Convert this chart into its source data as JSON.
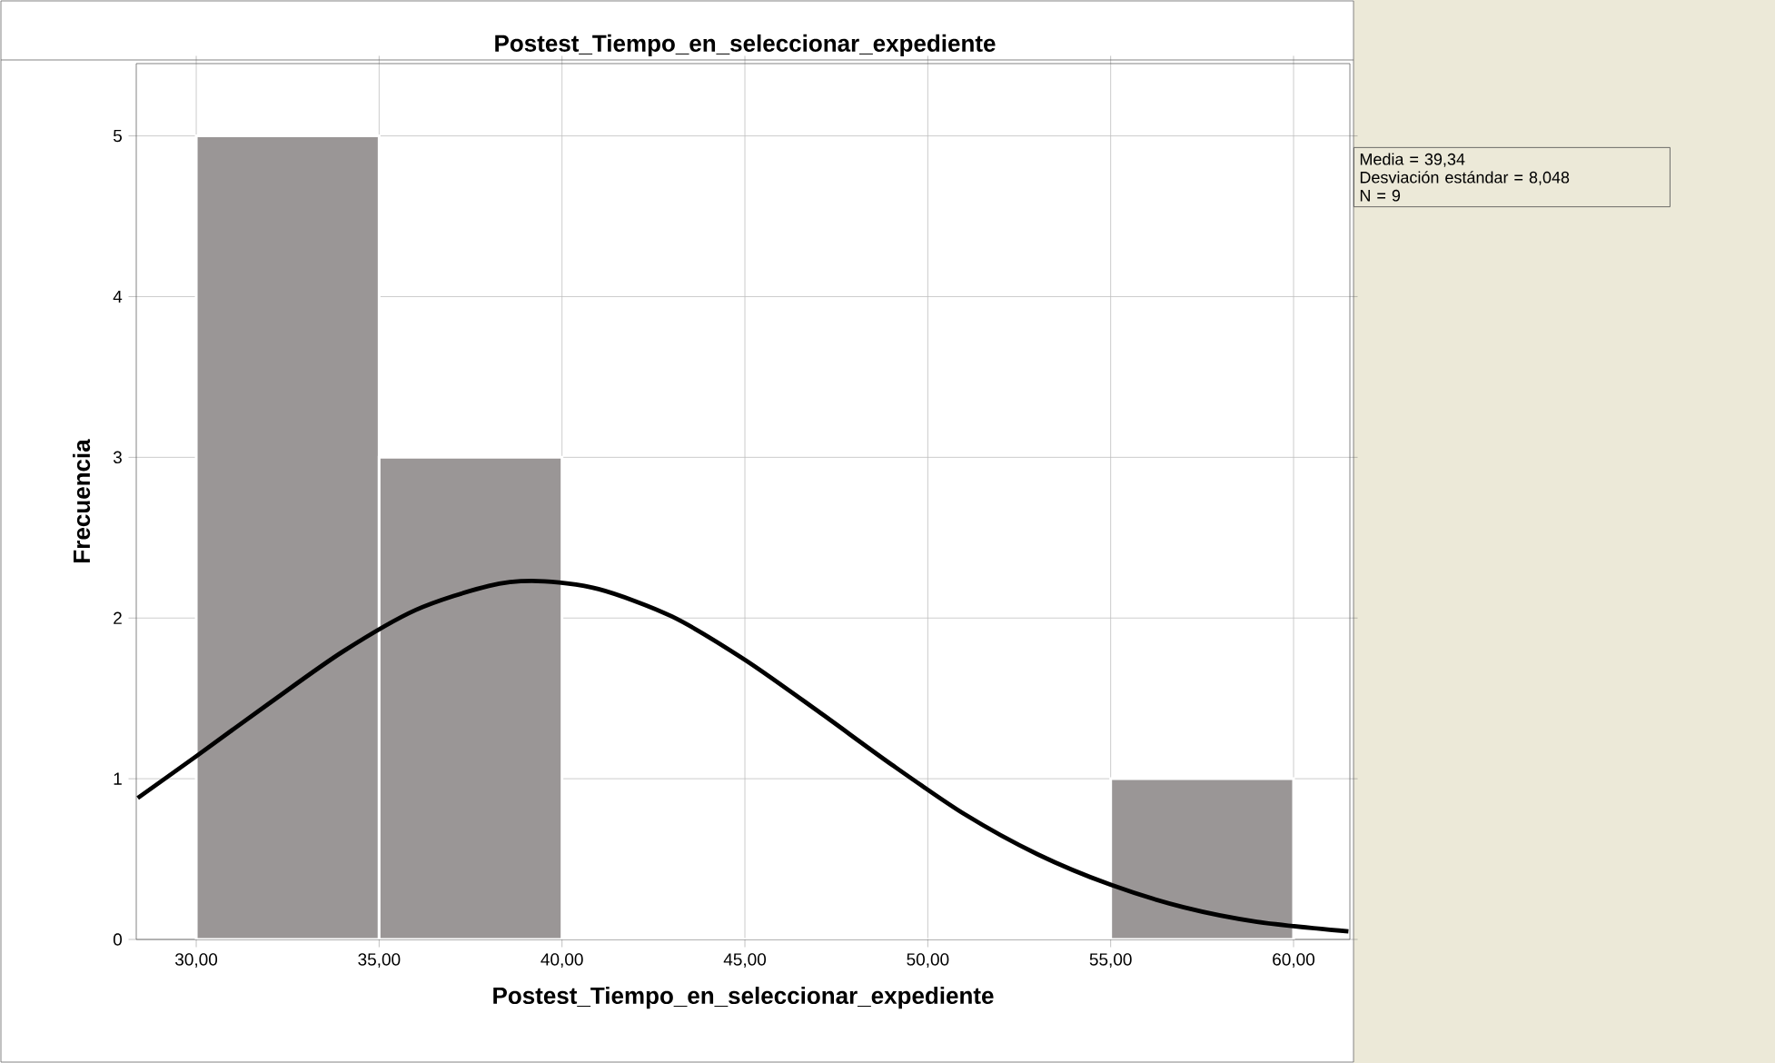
{
  "chart_data": {
    "type": "histogram",
    "title": "Postest_Tiempo_en_seleccionar_expediente",
    "xlabel": "Postest_Tiempo_en_seleccionar_expediente",
    "ylabel": "Frecuencia",
    "series": [
      {
        "type": "histogram",
        "bins": [
          30,
          35,
          40,
          45,
          50,
          55,
          60
        ],
        "values": [
          5,
          3,
          0,
          0,
          0,
          1
        ],
        "color": "#9a9696"
      },
      {
        "type": "line",
        "color": "#000000",
        "x": [
          28.4,
          30,
          32,
          34,
          36,
          38,
          39.34,
          41,
          43,
          45,
          47,
          49,
          51,
          53,
          55,
          57,
          59,
          61.5
        ],
        "values": [
          0.88,
          1.14,
          1.47,
          1.79,
          2.05,
          2.2,
          2.23,
          2.18,
          2.01,
          1.74,
          1.42,
          1.09,
          0.78,
          0.53,
          0.34,
          0.2,
          0.11,
          0.05
        ]
      }
    ],
    "xlim": [
      28.36,
      61.54
    ],
    "ylim": [
      0,
      5.45
    ],
    "xticks": [
      {
        "value": 30,
        "label": "30,00"
      },
      {
        "value": 35,
        "label": "35,00"
      },
      {
        "value": 40,
        "label": "40,00"
      },
      {
        "value": 45,
        "label": "45,00"
      },
      {
        "value": 50,
        "label": "50,00"
      },
      {
        "value": 55,
        "label": "55,00"
      },
      {
        "value": 60,
        "label": "60,00"
      }
    ],
    "yticks": [
      0,
      1,
      2,
      3,
      4,
      5
    ],
    "grid": true,
    "annotations": [
      "Media = 39,34",
      "Desviación estándar = 8,048",
      "N = 9"
    ]
  }
}
